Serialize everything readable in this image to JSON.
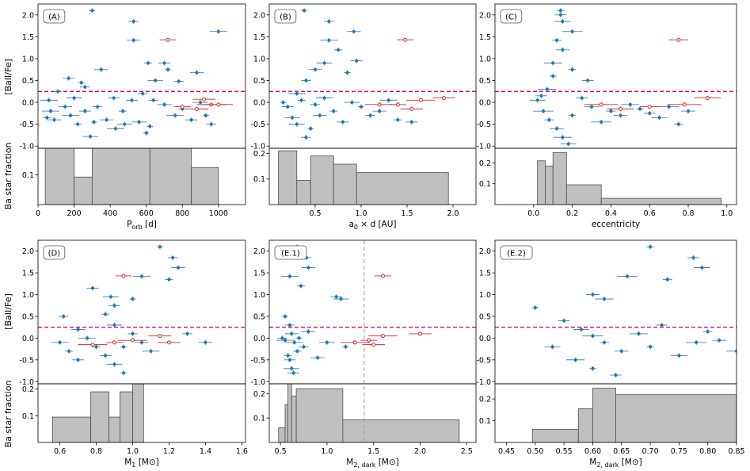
{
  "chart_data": {
    "type": "scatter",
    "description_ylabels": {
      "top": "[BaII/Fe]",
      "bottom": "Ba star fraction"
    },
    "threshold_y": 0.25,
    "colors": {
      "barium": "#1f77b4",
      "highlight": "#d62728",
      "threshold": "#e6007e",
      "hist_fill": "#bfbfbf",
      "hist_edge": "#4d4d4d",
      "vline": "#9e9e9e"
    },
    "panels": [
      {
        "label": "(A)",
        "xlabel_main": "P",
        "xlabel_sub": "orb",
        "xlabel_tail": " [d]",
        "xlim": [
          0,
          1150
        ],
        "xticks": [
          0,
          200,
          400,
          600,
          800,
          1000
        ],
        "ylim_scatter": [
          -1.05,
          2.25
        ],
        "yticks_scatter": [
          -1.0,
          -0.5,
          0.0,
          0.5,
          1.0,
          1.5,
          2.0
        ],
        "ylim_hist": [
          0,
          0.19
        ],
        "yticks_hist": [
          0.1
        ],
        "hist": {
          "edges": [
            40,
            200,
            300,
            620,
            850,
            1000
          ],
          "values": [
            0.19,
            0.093,
            0.19,
            0.19,
            0.125
          ]
        },
        "points": [
          [
            300,
            2.1
          ],
          [
            530,
            1.85
          ],
          [
            530,
            1.42
          ],
          [
            1000,
            1.62
          ],
          [
            610,
            0.9
          ],
          [
            700,
            0.9
          ],
          [
            650,
            0.5
          ],
          [
            720,
            0.75
          ],
          [
            780,
            0.48
          ],
          [
            880,
            0.68
          ],
          [
            60,
            0.05
          ],
          [
            110,
            0.25
          ],
          [
            170,
            0.55
          ],
          [
            200,
            0.1
          ],
          [
            240,
            0.45
          ],
          [
            260,
            0.35
          ],
          [
            150,
            -0.1
          ],
          [
            180,
            -0.3
          ],
          [
            220,
            -0.5
          ],
          [
            260,
            -0.2
          ],
          [
            290,
            -0.78
          ],
          [
            310,
            -0.45
          ],
          [
            330,
            -0.1
          ],
          [
            380,
            -0.4
          ],
          [
            430,
            -0.6
          ],
          [
            470,
            -0.2
          ],
          [
            520,
            0.05
          ],
          [
            560,
            -0.45
          ],
          [
            600,
            -0.7
          ],
          [
            640,
            0.05
          ],
          [
            700,
            -0.05
          ],
          [
            760,
            -0.3
          ],
          [
            800,
            -0.15
          ],
          [
            850,
            -0.4
          ],
          [
            900,
            0.0
          ],
          [
            930,
            -0.3
          ],
          [
            960,
            -0.5
          ],
          [
            90,
            -0.4
          ],
          [
            70,
            -0.2
          ],
          [
            50,
            -0.35
          ],
          [
            420,
            0.1
          ],
          [
            480,
            -0.5
          ],
          [
            620,
            -0.55
          ],
          [
            580,
            0.2
          ],
          [
            350,
            0.75
          ]
        ],
        "red_points": [
          [
            720,
            1.43
          ],
          [
            920,
            0.07
          ],
          [
            960,
            -0.05
          ],
          [
            800,
            -0.1
          ],
          [
            880,
            -0.15
          ],
          [
            1000,
            -0.05
          ]
        ]
      },
      {
        "label": "(B)",
        "xlabel_main": "a",
        "xlabel_sub": "0",
        "xlabel_tail": " × d [AU]",
        "xlim": [
          0.0,
          2.25
        ],
        "xticks": [
          0.5,
          1.0,
          1.5,
          2.0
        ],
        "ylim_scatter": [
          -1.05,
          2.25
        ],
        "yticks_scatter": [
          -1.0,
          -0.5,
          0.0,
          0.5,
          1.0,
          1.5,
          2.0
        ],
        "ylim_hist": [
          0,
          0.22
        ],
        "yticks_hist": [
          0.1,
          0.2
        ],
        "hist": {
          "edges": [
            0.1,
            0.3,
            0.45,
            0.7,
            0.95,
            1.95
          ],
          "values": [
            0.21,
            0.095,
            0.19,
            0.158,
            0.125
          ]
        },
        "points": [
          [
            0.38,
            2.1
          ],
          [
            0.65,
            1.85
          ],
          [
            0.92,
            1.62
          ],
          [
            0.65,
            1.42
          ],
          [
            0.75,
            1.2
          ],
          [
            0.95,
            0.95
          ],
          [
            0.6,
            0.9
          ],
          [
            0.85,
            0.68
          ],
          [
            0.4,
            0.5
          ],
          [
            0.5,
            0.75
          ],
          [
            0.3,
            0.2
          ],
          [
            0.35,
            0.05
          ],
          [
            0.2,
            -0.1
          ],
          [
            0.25,
            -0.35
          ],
          [
            0.45,
            -0.6
          ],
          [
            0.4,
            -0.8
          ],
          [
            0.55,
            -0.3
          ],
          [
            0.6,
            0.1
          ],
          [
            0.7,
            -0.2
          ],
          [
            0.8,
            -0.45
          ],
          [
            0.9,
            0.0
          ],
          [
            1.0,
            -0.1
          ],
          [
            1.1,
            -0.3
          ],
          [
            1.2,
            -0.2
          ],
          [
            1.3,
            0.05
          ],
          [
            1.4,
            -0.4
          ],
          [
            1.55,
            -0.45
          ],
          [
            0.3,
            -0.5
          ],
          [
            0.15,
            0.0
          ],
          [
            0.5,
            -0.05
          ]
        ],
        "red_points": [
          [
            1.48,
            1.43
          ],
          [
            1.9,
            0.1
          ],
          [
            1.65,
            0.05
          ],
          [
            1.4,
            -0.05
          ],
          [
            1.55,
            -0.15
          ],
          [
            1.2,
            -0.05
          ]
        ]
      },
      {
        "label": "(C)",
        "xlabel_main": "eccentricity",
        "xlabel_sub": "",
        "xlabel_tail": "",
        "xlim": [
          -0.2,
          1.05
        ],
        "xticks": [
          0.0,
          0.2,
          0.4,
          0.6,
          0.8,
          1.0
        ],
        "ylim_scatter": [
          -1.05,
          2.25
        ],
        "yticks_scatter": [
          -1.0,
          -0.5,
          0.0,
          0.5,
          1.0,
          1.5,
          2.0
        ],
        "ylim_hist": [
          0,
          0.27
        ],
        "yticks_hist": [
          0.1,
          0.2
        ],
        "hist": {
          "edges": [
            0.02,
            0.06,
            0.1,
            0.17,
            0.35,
            0.97
          ],
          "values": [
            0.21,
            0.185,
            0.25,
            0.095,
            0.03
          ]
        },
        "points": [
          [
            0.14,
            2.1
          ],
          [
            0.14,
            2.0
          ],
          [
            0.15,
            1.85
          ],
          [
            0.2,
            1.62
          ],
          [
            0.12,
            1.42
          ],
          [
            0.15,
            1.2
          ],
          [
            0.1,
            0.9
          ],
          [
            0.2,
            0.75
          ],
          [
            0.28,
            0.5
          ],
          [
            0.02,
            0.05
          ],
          [
            0.05,
            -0.2
          ],
          [
            0.08,
            -0.4
          ],
          [
            0.12,
            -0.6
          ],
          [
            0.15,
            -0.8
          ],
          [
            0.2,
            -0.3
          ],
          [
            0.25,
            0.1
          ],
          [
            0.3,
            -0.1
          ],
          [
            0.35,
            -0.45
          ],
          [
            0.4,
            -0.2
          ],
          [
            0.45,
            -0.3
          ],
          [
            0.5,
            -0.05
          ],
          [
            0.55,
            -0.15
          ],
          [
            0.6,
            -0.25
          ],
          [
            0.65,
            -0.35
          ],
          [
            0.7,
            -0.1
          ],
          [
            0.75,
            -0.5
          ],
          [
            0.8,
            -0.2
          ],
          [
            0.07,
            0.3
          ],
          [
            0.1,
            0.6
          ],
          [
            0.04,
            0.15
          ],
          [
            0.18,
            -0.95
          ]
        ],
        "red_points": [
          [
            0.75,
            1.43
          ],
          [
            0.9,
            0.1
          ],
          [
            0.78,
            -0.05
          ],
          [
            0.6,
            -0.1
          ],
          [
            0.45,
            -0.15
          ],
          [
            0.35,
            -0.05
          ]
        ]
      },
      {
        "label": "(D)",
        "xlabel_main": "M",
        "xlabel_sub": "1",
        "xlabel_tail": " [M⊙]",
        "xlim": [
          0.48,
          1.62
        ],
        "xticks": [
          0.6,
          0.8,
          1.0,
          1.2,
          1.4,
          1.6
        ],
        "ylim_scatter": [
          -1.05,
          2.25
        ],
        "yticks_scatter": [
          -1.0,
          -0.5,
          0.0,
          0.5,
          1.0,
          1.5,
          2.0
        ],
        "ylim_hist": [
          0,
          0.22
        ],
        "yticks_hist": [
          0.1,
          0.2
        ],
        "hist": {
          "edges": [
            0.56,
            0.77,
            0.87,
            0.93,
            1.0,
            1.06,
            1.24
          ],
          "values": [
            0.095,
            0.19,
            0.095,
            0.19,
            0.22,
            0.0
          ]
        },
        "points": [
          [
            1.15,
            2.1
          ],
          [
            1.22,
            1.85
          ],
          [
            1.25,
            1.62
          ],
          [
            1.05,
            1.42
          ],
          [
            1.2,
            1.35
          ],
          [
            0.78,
            1.15
          ],
          [
            0.88,
            0.95
          ],
          [
            1.0,
            0.9
          ],
          [
            0.62,
            0.5
          ],
          [
            0.7,
            0.2
          ],
          [
            0.75,
            0.0
          ],
          [
            0.8,
            -0.2
          ],
          [
            0.85,
            -0.4
          ],
          [
            0.9,
            -0.6
          ],
          [
            0.95,
            -0.2
          ],
          [
            1.0,
            0.1
          ],
          [
            1.05,
            -0.1
          ],
          [
            1.1,
            -0.3
          ],
          [
            0.65,
            -0.3
          ],
          [
            0.7,
            -0.5
          ],
          [
            0.9,
            0.3
          ],
          [
            0.95,
            -0.8
          ],
          [
            1.3,
            0.1
          ],
          [
            1.4,
            -0.1
          ],
          [
            0.6,
            -0.1
          ],
          [
            0.85,
            0.55
          ],
          [
            0.9,
            0.75
          ]
        ],
        "red_points": [
          [
            0.95,
            1.43
          ],
          [
            1.15,
            0.05
          ],
          [
            1.0,
            -0.05
          ],
          [
            0.9,
            -0.1
          ],
          [
            1.2,
            -0.1
          ],
          [
            0.78,
            -0.15
          ]
        ]
      },
      {
        "label": "(E.1)",
        "xlabel_main": "M",
        "xlabel_sub": "2, dark",
        "xlabel_tail": " [M⊙]",
        "xlim": [
          0.38,
          2.6
        ],
        "xticks": [
          0.5,
          1.0,
          1.5,
          2.0,
          2.5
        ],
        "ylim_scatter": [
          -1.05,
          2.25
        ],
        "yticks_scatter": [
          -1.0,
          -0.5,
          0.0,
          0.5,
          1.0,
          1.5,
          2.0
        ],
        "ylim_hist": [
          0,
          0.24
        ],
        "yticks_hist": [
          0.1,
          0.2
        ],
        "vline_x": 1.4,
        "hist": {
          "edges": [
            0.48,
            0.55,
            0.58,
            0.62,
            0.67,
            1.17,
            2.42
          ],
          "values": [
            0.06,
            0.155,
            0.25,
            0.19,
            0.22,
            0.093
          ]
        },
        "points": [
          [
            0.68,
            2.1
          ],
          [
            0.78,
            1.85
          ],
          [
            0.8,
            1.62
          ],
          [
            0.6,
            1.42
          ],
          [
            0.72,
            1.2
          ],
          [
            1.1,
            0.95
          ],
          [
            1.15,
            0.9
          ],
          [
            0.55,
            0.5
          ],
          [
            0.6,
            0.3
          ],
          [
            0.62,
            0.1
          ],
          [
            0.65,
            -0.1
          ],
          [
            0.68,
            -0.3
          ],
          [
            0.6,
            -0.5
          ],
          [
            0.62,
            -0.7
          ],
          [
            0.7,
            0.0
          ],
          [
            0.75,
            -0.2
          ],
          [
            0.8,
            0.15
          ],
          [
            0.55,
            -0.05
          ],
          [
            0.58,
            -0.4
          ],
          [
            0.64,
            -0.8
          ],
          [
            1.0,
            -0.1
          ],
          [
            1.2,
            -0.2
          ],
          [
            0.52,
            0.0
          ],
          [
            0.9,
            -0.45
          ]
        ],
        "red_points": [
          [
            1.6,
            1.43
          ],
          [
            2.0,
            0.1
          ],
          [
            1.6,
            0.05
          ],
          [
            1.45,
            -0.05
          ],
          [
            1.5,
            -0.15
          ],
          [
            1.3,
            -0.1
          ]
        ]
      },
      {
        "label": "(E.2)",
        "xlabel_main": "M",
        "xlabel_sub": "2, dark",
        "xlabel_tail": " [M⊙]",
        "xlim": [
          0.43,
          0.85
        ],
        "xticks": [
          0.45,
          0.5,
          0.55,
          0.6,
          0.65,
          0.7,
          0.75,
          0.8,
          0.85
        ],
        "ylim_scatter": [
          -1.05,
          2.25
        ],
        "yticks_scatter": [
          -1.0,
          -0.5,
          0.0,
          0.5,
          1.0,
          1.5,
          2.0
        ],
        "ylim_hist": [
          0,
          0.27
        ],
        "yticks_hist": [
          0.1,
          0.2
        ],
        "hist": {
          "edges": [
            0.495,
            0.575,
            0.6,
            0.64,
            0.85
          ],
          "values": [
            0.06,
            0.155,
            0.25,
            0.22
          ]
        },
        "points": [
          [
            0.7,
            2.1
          ],
          [
            0.775,
            1.85
          ],
          [
            0.79,
            1.62
          ],
          [
            0.66,
            1.42
          ],
          [
            0.73,
            1.35
          ],
          [
            0.6,
            1.0
          ],
          [
            0.62,
            0.9
          ],
          [
            0.5,
            0.7
          ],
          [
            0.55,
            0.4
          ],
          [
            0.58,
            0.2
          ],
          [
            0.6,
            0.05
          ],
          [
            0.62,
            -0.1
          ],
          [
            0.65,
            -0.3
          ],
          [
            0.68,
            0.1
          ],
          [
            0.7,
            -0.2
          ],
          [
            0.72,
            0.3
          ],
          [
            0.75,
            -0.4
          ],
          [
            0.78,
            -0.1
          ],
          [
            0.8,
            0.15
          ],
          [
            0.82,
            -0.05
          ],
          [
            0.57,
            -0.5
          ],
          [
            0.6,
            -0.7
          ],
          [
            0.64,
            -0.85
          ],
          [
            0.53,
            -0.2
          ],
          [
            0.85,
            -0.3
          ]
        ],
        "red_points": []
      }
    ]
  }
}
